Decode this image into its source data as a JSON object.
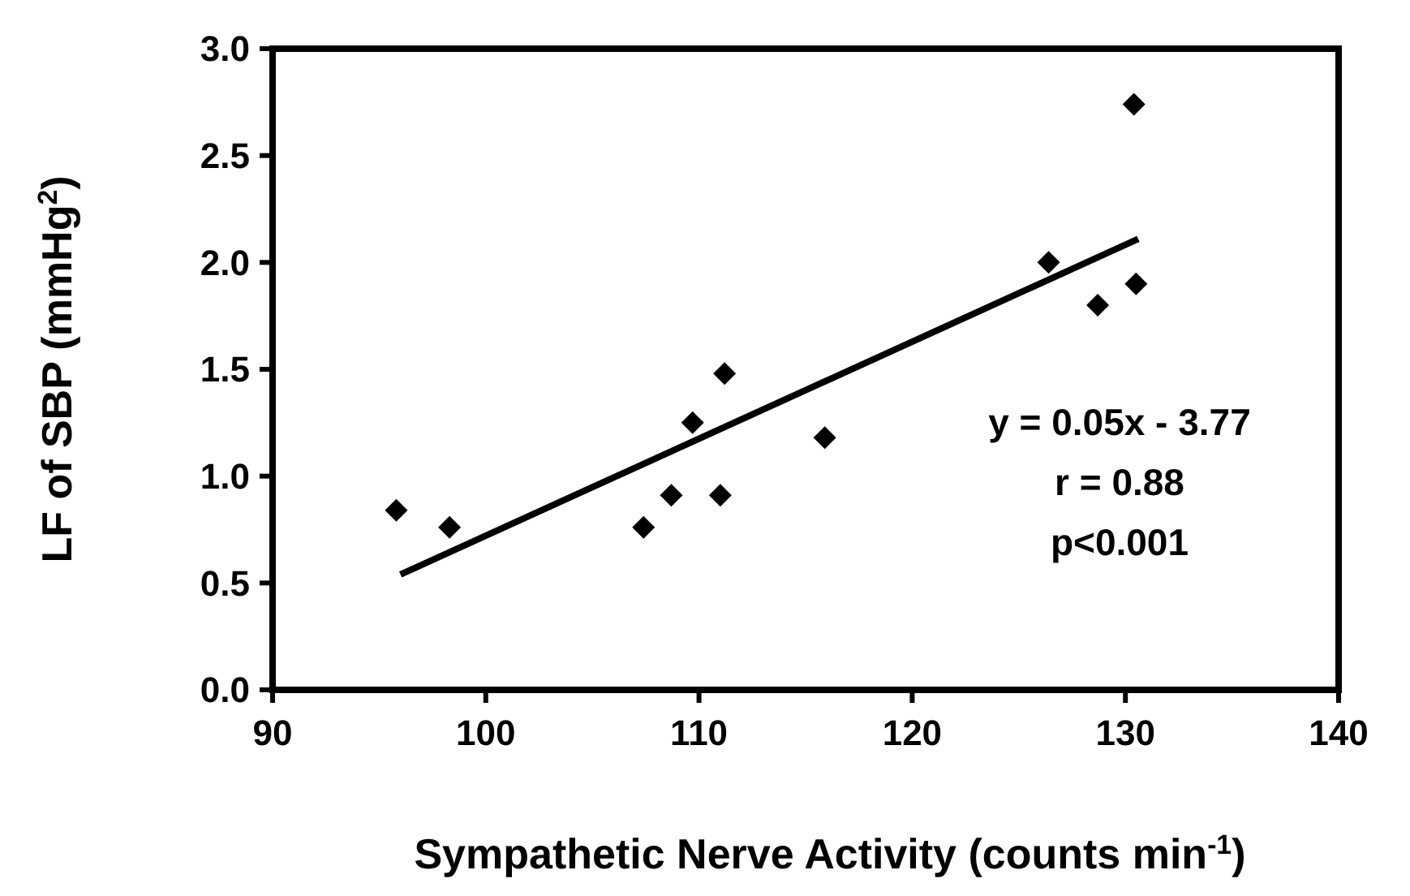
{
  "chart_data": {
    "type": "scatter",
    "xlabel": "Sympathetic Nerve Activity (counts min$^{-1}$)",
    "ylabel": "LF of SBP (mmHg$^{2}$)",
    "xlim": [
      90,
      140
    ],
    "xticks": [
      90,
      100,
      110,
      120,
      130,
      140
    ],
    "ylim": [
      0,
      3
    ],
    "yticks": [
      {
        "value": 0,
        "label": "0.0"
      },
      {
        "value": 0.5,
        "label": "0.5"
      },
      {
        "value": 1,
        "label": "1.0"
      },
      {
        "value": 1.5,
        "label": "1.5"
      },
      {
        "value": 2,
        "label": "2.0"
      },
      {
        "value": 2.5,
        "label": "2.5"
      },
      {
        "value": 3,
        "label": "3.0"
      }
    ],
    "grid": false,
    "series": [
      {
        "marker": "diamond",
        "color": "#000000",
        "x": [
          95.8,
          98.3,
          107.4,
          108.7,
          109.7,
          111.0,
          111.2,
          115.9,
          126.4,
          128.7,
          130.5,
          130.4
        ],
        "values": [
          0.84,
          0.76,
          0.76,
          0.91,
          1.25,
          0.91,
          1.48,
          1.18,
          2.0,
          1.8,
          1.9,
          2.74
        ]
      },
      {
        "type": "line",
        "color": "#000000",
        "x": [
          96.0,
          130.6
        ],
        "values": [
          0.54,
          2.11
        ]
      }
    ],
    "annotations": [
      "y = 0.05x - 3.77",
      "r = 0.88",
      "p<0.001"
    ]
  }
}
